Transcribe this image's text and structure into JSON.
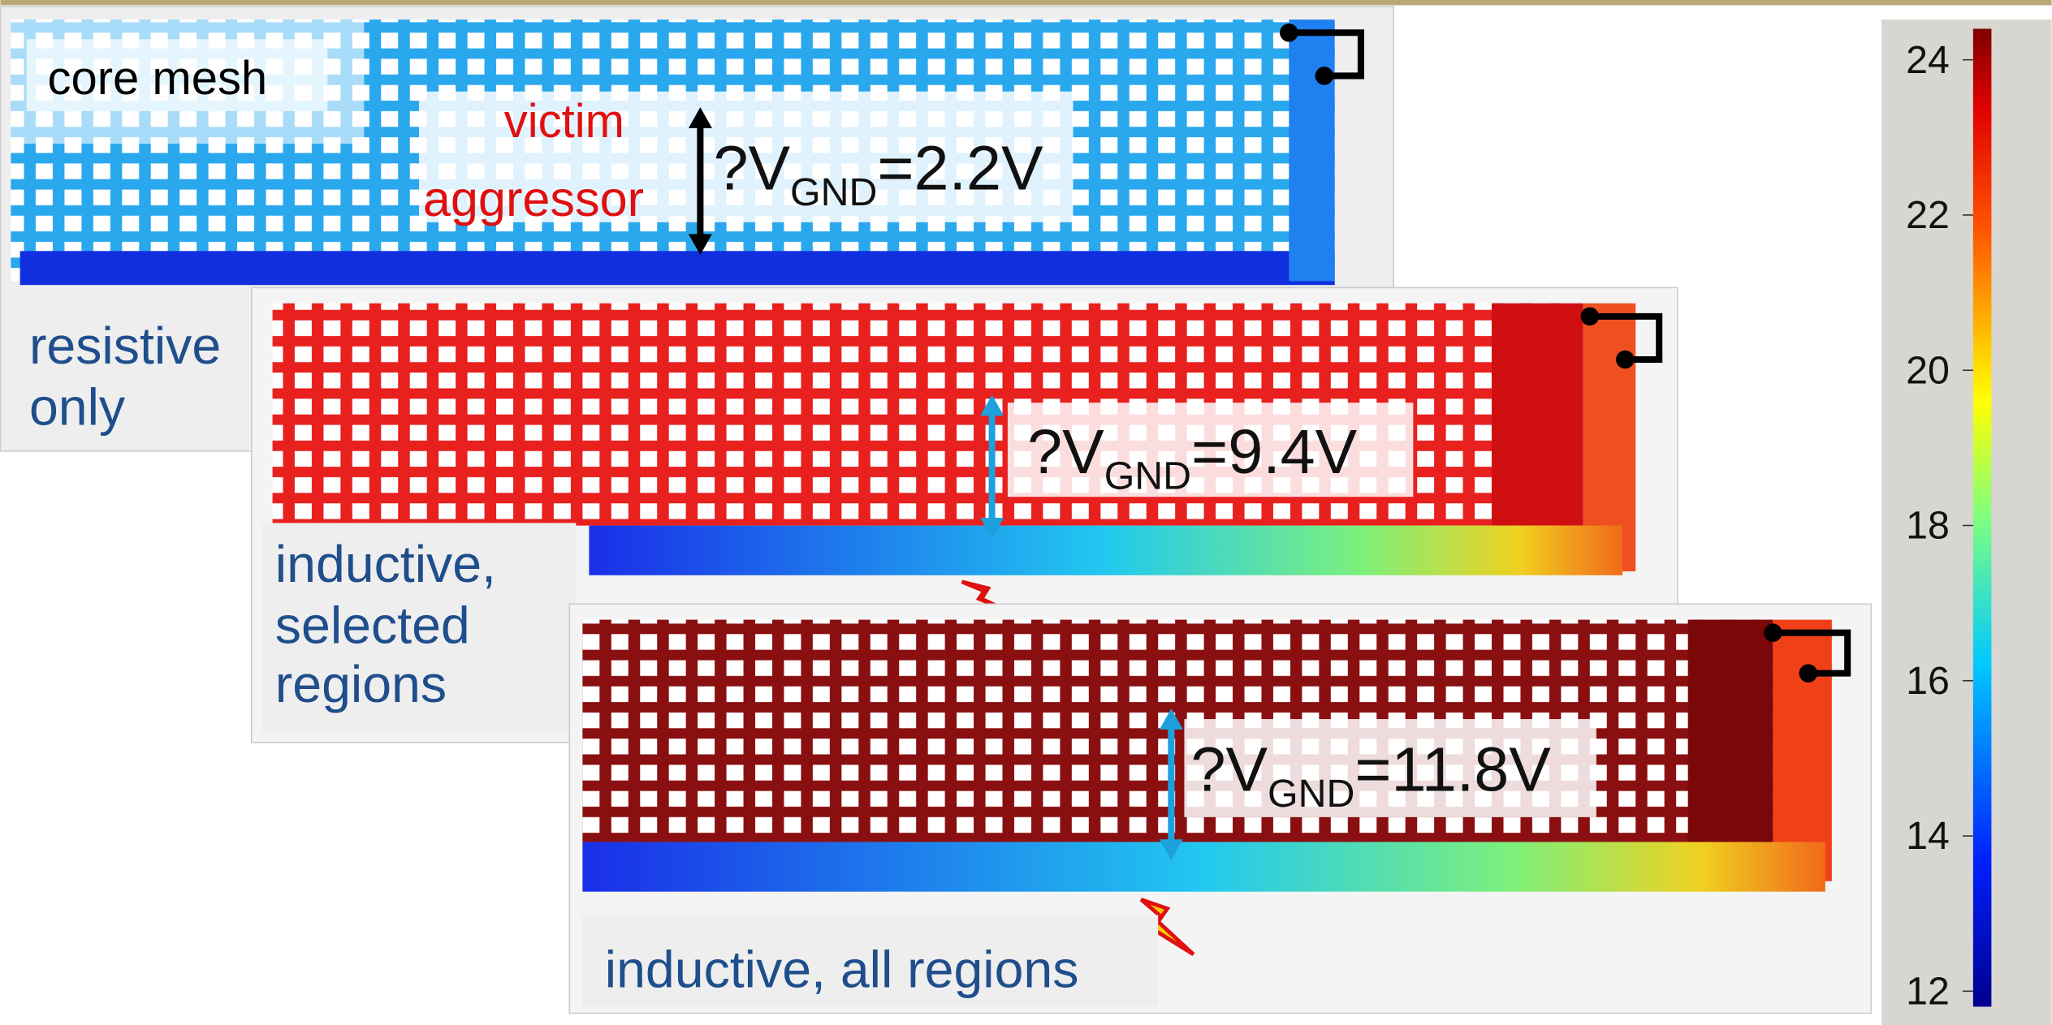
{
  "panels": [
    {
      "title": "core mesh",
      "victim": "victim",
      "aggressor": "aggressor",
      "label_lines": [
        "resistive",
        "only"
      ],
      "annotation": {
        "prefix": "?V",
        "subscript": "GND",
        "suffix": "=2.2V"
      }
    },
    {
      "label_lines": [
        "inductive,",
        "selected",
        "regions"
      ],
      "annotation": {
        "prefix": "?V",
        "subscript": "GND",
        "suffix": "=9.4V"
      }
    },
    {
      "label_lines": [
        "inductive, all regions"
      ],
      "annotation": {
        "prefix": "?V",
        "subscript": "GND",
        "suffix": "=11.8V"
      }
    }
  ],
  "colorbar": {
    "clim": [
      11.8,
      24.4
    ],
    "ticks": [
      12,
      14,
      16,
      18,
      20,
      22,
      24
    ]
  }
}
